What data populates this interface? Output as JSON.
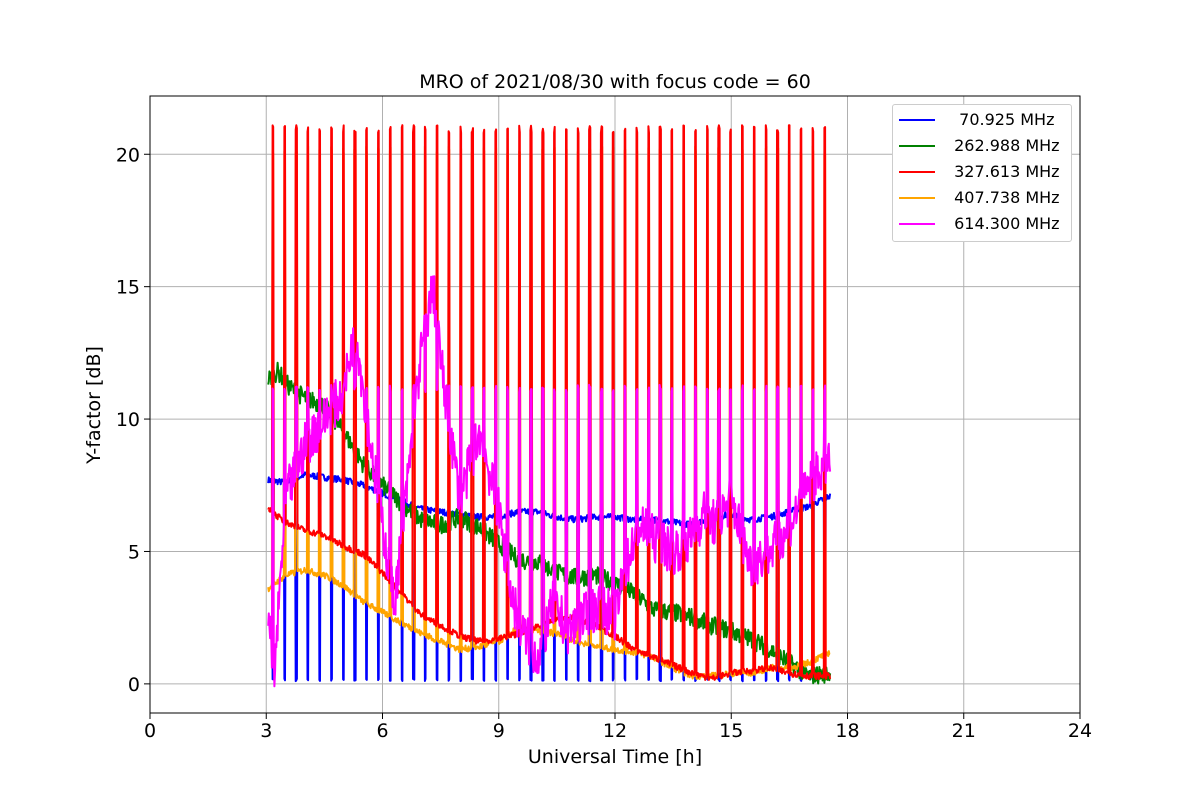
{
  "colors": {
    "axes": "#000000",
    "grid": "#b0b0b0",
    "background": "#ffffff"
  },
  "chart_data": {
    "type": "line",
    "title": "MRO of 2021/08/30 with focus code = 60",
    "xlabel": "Universal Time [h]",
    "ylabel": "Y-factor [dB]",
    "xlim": [
      0,
      24
    ],
    "ylim": [
      -1.1,
      22.2
    ],
    "xticks": [
      0,
      3,
      6,
      9,
      12,
      15,
      18,
      21,
      24
    ],
    "yticks": [
      0,
      5,
      10,
      15,
      20
    ],
    "grid": true,
    "legend_position": "top-right",
    "x_range_of_data": [
      3.05,
      17.55
    ],
    "series": [
      {
        "name": "70.925 MHz",
        "legend_label": "  70.925 MHz",
        "color": "#0000ff",
        "spike_to": 0.1,
        "baseline": [
          [
            3.05,
            7.7
          ],
          [
            3.5,
            7.6
          ],
          [
            4,
            7.9
          ],
          [
            4.5,
            7.8
          ],
          [
            5,
            7.7
          ],
          [
            5.5,
            7.5
          ],
          [
            6,
            7.2
          ],
          [
            6.5,
            6.9
          ],
          [
            7,
            6.6
          ],
          [
            7.5,
            6.5
          ],
          [
            8,
            6.4
          ],
          [
            8.5,
            6.3
          ],
          [
            9,
            6.3
          ],
          [
            9.5,
            6.5
          ],
          [
            10,
            6.5
          ],
          [
            10.5,
            6.3
          ],
          [
            11,
            6.2
          ],
          [
            11.5,
            6.3
          ],
          [
            12,
            6.3
          ],
          [
            12.5,
            6.2
          ],
          [
            13,
            6.2
          ],
          [
            13.5,
            6.1
          ],
          [
            14,
            6.0
          ],
          [
            14.5,
            6.3
          ],
          [
            15,
            6.4
          ],
          [
            15.5,
            6.2
          ],
          [
            16,
            6.3
          ],
          [
            16.5,
            6.5
          ],
          [
            17,
            6.7
          ],
          [
            17.55,
            7.1
          ]
        ]
      },
      {
        "name": "262.988 MHz",
        "legend_label": " 262.988 MHz",
        "color": "#008000",
        "baseline": [
          [
            3.05,
            11.5
          ],
          [
            3.3,
            11.8
          ],
          [
            3.6,
            11.2
          ],
          [
            4,
            10.8
          ],
          [
            4.5,
            10.5
          ],
          [
            5,
            9.5
          ],
          [
            5.5,
            8.3
          ],
          [
            6,
            7.5
          ],
          [
            6.5,
            6.8
          ],
          [
            7,
            6.2
          ],
          [
            7.5,
            6.0
          ],
          [
            8,
            6.3
          ],
          [
            8.5,
            5.9
          ],
          [
            9,
            5.3
          ],
          [
            9.5,
            4.7
          ],
          [
            10,
            4.6
          ],
          [
            10.5,
            4.2
          ],
          [
            11,
            4.0
          ],
          [
            11.5,
            4.1
          ],
          [
            12,
            3.8
          ],
          [
            12.5,
            3.4
          ],
          [
            13,
            2.8
          ],
          [
            13.5,
            2.7
          ],
          [
            14,
            2.5
          ],
          [
            14.5,
            2.2
          ],
          [
            15,
            2.0
          ],
          [
            15.5,
            1.7
          ],
          [
            16,
            1.3
          ],
          [
            16.5,
            0.8
          ],
          [
            17,
            0.3
          ],
          [
            17.55,
            0.4
          ]
        ]
      },
      {
        "name": "327.613 MHz",
        "legend_label": " 327.613 MHz",
        "color": "#ff0000",
        "peak": 21.1,
        "baseline": [
          [
            3.05,
            6.6
          ],
          [
            3.5,
            6.1
          ],
          [
            4,
            5.8
          ],
          [
            4.5,
            5.6
          ],
          [
            5,
            5.2
          ],
          [
            5.5,
            4.9
          ],
          [
            6,
            4.2
          ],
          [
            6.5,
            3.4
          ],
          [
            7,
            2.6
          ],
          [
            7.5,
            2.2
          ],
          [
            8,
            1.8
          ],
          [
            8.5,
            1.6
          ],
          [
            9,
            1.7
          ],
          [
            9.5,
            1.9
          ],
          [
            10,
            2.2
          ],
          [
            10.5,
            2.4
          ],
          [
            11,
            2.5
          ],
          [
            11.5,
            2.2
          ],
          [
            12,
            1.8
          ],
          [
            12.5,
            1.3
          ],
          [
            13,
            1.0
          ],
          [
            13.5,
            0.7
          ],
          [
            14,
            0.4
          ],
          [
            14.5,
            0.2
          ],
          [
            15,
            0.4
          ],
          [
            15.5,
            0.5
          ],
          [
            16,
            0.6
          ],
          [
            16.5,
            0.4
          ],
          [
            17,
            0.3
          ],
          [
            17.55,
            0.3
          ]
        ]
      },
      {
        "name": "407.738 MHz",
        "legend_label": " 407.738 MHz",
        "color": "#ffa500",
        "peak": 20.3,
        "baseline": [
          [
            3.05,
            3.6
          ],
          [
            3.5,
            4.1
          ],
          [
            4,
            4.3
          ],
          [
            4.5,
            4.1
          ],
          [
            5,
            3.7
          ],
          [
            5.5,
            3.1
          ],
          [
            6,
            2.7
          ],
          [
            6.5,
            2.3
          ],
          [
            7,
            1.9
          ],
          [
            7.5,
            1.6
          ],
          [
            8,
            1.3
          ],
          [
            8.5,
            1.4
          ],
          [
            9,
            1.6
          ],
          [
            9.5,
            2.1
          ],
          [
            10,
            2.0
          ],
          [
            10.5,
            1.9
          ],
          [
            11,
            1.6
          ],
          [
            11.5,
            1.4
          ],
          [
            12,
            1.3
          ],
          [
            12.5,
            1.2
          ],
          [
            13,
            1.0
          ],
          [
            13.5,
            0.6
          ],
          [
            14,
            0.3
          ],
          [
            14.5,
            0.3
          ],
          [
            15,
            0.4
          ],
          [
            15.5,
            0.4
          ],
          [
            16,
            0.6
          ],
          [
            16.5,
            0.6
          ],
          [
            17,
            0.8
          ],
          [
            17.55,
            1.2
          ]
        ]
      },
      {
        "name": "614.300 MHz",
        "legend_label": " 614.300 MHz",
        "color": "#ff00ff",
        "peak": 11.3,
        "baseline": [
          [
            3.05,
            2.9
          ],
          [
            3.2,
            0.1
          ],
          [
            3.5,
            7.0
          ],
          [
            4,
            9.0
          ],
          [
            4.5,
            10.0
          ],
          [
            5,
            11.0
          ],
          [
            5.3,
            13.5
          ],
          [
            5.6,
            10.0
          ],
          [
            6,
            6.0
          ],
          [
            6.3,
            3.0
          ],
          [
            6.6,
            7.0
          ],
          [
            7,
            12.5
          ],
          [
            7.3,
            15.0
          ],
          [
            7.6,
            11.0
          ],
          [
            8,
            7.0
          ],
          [
            8.5,
            9.5
          ],
          [
            9,
            6.5
          ],
          [
            9.3,
            3.5
          ],
          [
            9.6,
            2.0
          ],
          [
            10,
            1.0
          ],
          [
            10.4,
            3.0
          ],
          [
            10.8,
            2.0
          ],
          [
            11.2,
            2.5
          ],
          [
            11.6,
            3.0
          ],
          [
            12,
            2.5
          ],
          [
            12.3,
            4.5
          ],
          [
            12.6,
            6.0
          ],
          [
            13,
            5.5
          ],
          [
            13.5,
            5.0
          ],
          [
            14,
            5.5
          ],
          [
            14.3,
            6.5
          ],
          [
            14.6,
            6.0
          ],
          [
            15,
            7.0
          ],
          [
            15.5,
            4.5
          ],
          [
            16,
            5.0
          ],
          [
            16.5,
            6.0
          ],
          [
            17,
            7.5
          ],
          [
            17.55,
            8.5
          ]
        ]
      }
    ]
  }
}
